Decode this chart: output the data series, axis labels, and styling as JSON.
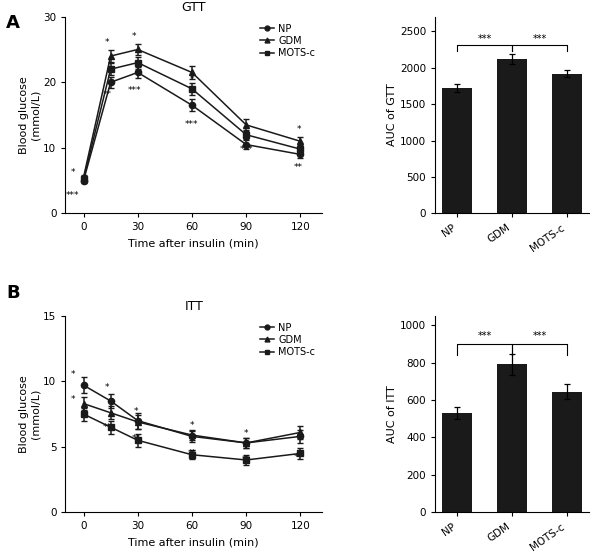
{
  "gtt_times": [
    0,
    15,
    30,
    60,
    90,
    120
  ],
  "gtt_NP": [
    5.0,
    20.0,
    21.5,
    16.5,
    10.5,
    9.0
  ],
  "gtt_NP_err": [
    0.4,
    0.8,
    0.9,
    0.9,
    0.7,
    0.6
  ],
  "gtt_GDM": [
    5.5,
    24.0,
    25.0,
    21.5,
    13.5,
    11.0
  ],
  "gtt_GDM_err": [
    0.4,
    0.9,
    0.9,
    1.0,
    0.9,
    0.7
  ],
  "gtt_MOTS": [
    5.2,
    22.0,
    23.0,
    19.0,
    12.0,
    9.8
  ],
  "gtt_MOTS_err": [
    0.4,
    0.9,
    0.9,
    0.9,
    0.7,
    0.6
  ],
  "gtt_auc_cats": [
    "NP",
    "GDM",
    "MOTS-c"
  ],
  "gtt_auc_vals": [
    1720,
    2120,
    1920
  ],
  "gtt_auc_errs": [
    55,
    75,
    50
  ],
  "itt_times": [
    0,
    15,
    30,
    60,
    90,
    120
  ],
  "itt_NP": [
    9.7,
    8.5,
    7.0,
    5.8,
    5.3,
    5.8
  ],
  "itt_NP_err": [
    0.6,
    0.5,
    0.6,
    0.4,
    0.4,
    0.5
  ],
  "itt_GDM": [
    8.3,
    7.6,
    6.9,
    5.9,
    5.3,
    6.1
  ],
  "itt_GDM_err": [
    0.5,
    0.5,
    0.5,
    0.4,
    0.4,
    0.5
  ],
  "itt_MOTS": [
    7.5,
    6.5,
    5.5,
    4.4,
    4.0,
    4.5
  ],
  "itt_MOTS_err": [
    0.5,
    0.5,
    0.5,
    0.35,
    0.35,
    0.4
  ],
  "itt_auc_cats": [
    "NP",
    "GDM",
    "MOTS-c"
  ],
  "itt_auc_vals": [
    530,
    790,
    645
  ],
  "itt_auc_errs": [
    32,
    58,
    38
  ],
  "bar_color": "#1a1a1a",
  "line_color": "#1a1a1a",
  "bg_color": "#ffffff"
}
